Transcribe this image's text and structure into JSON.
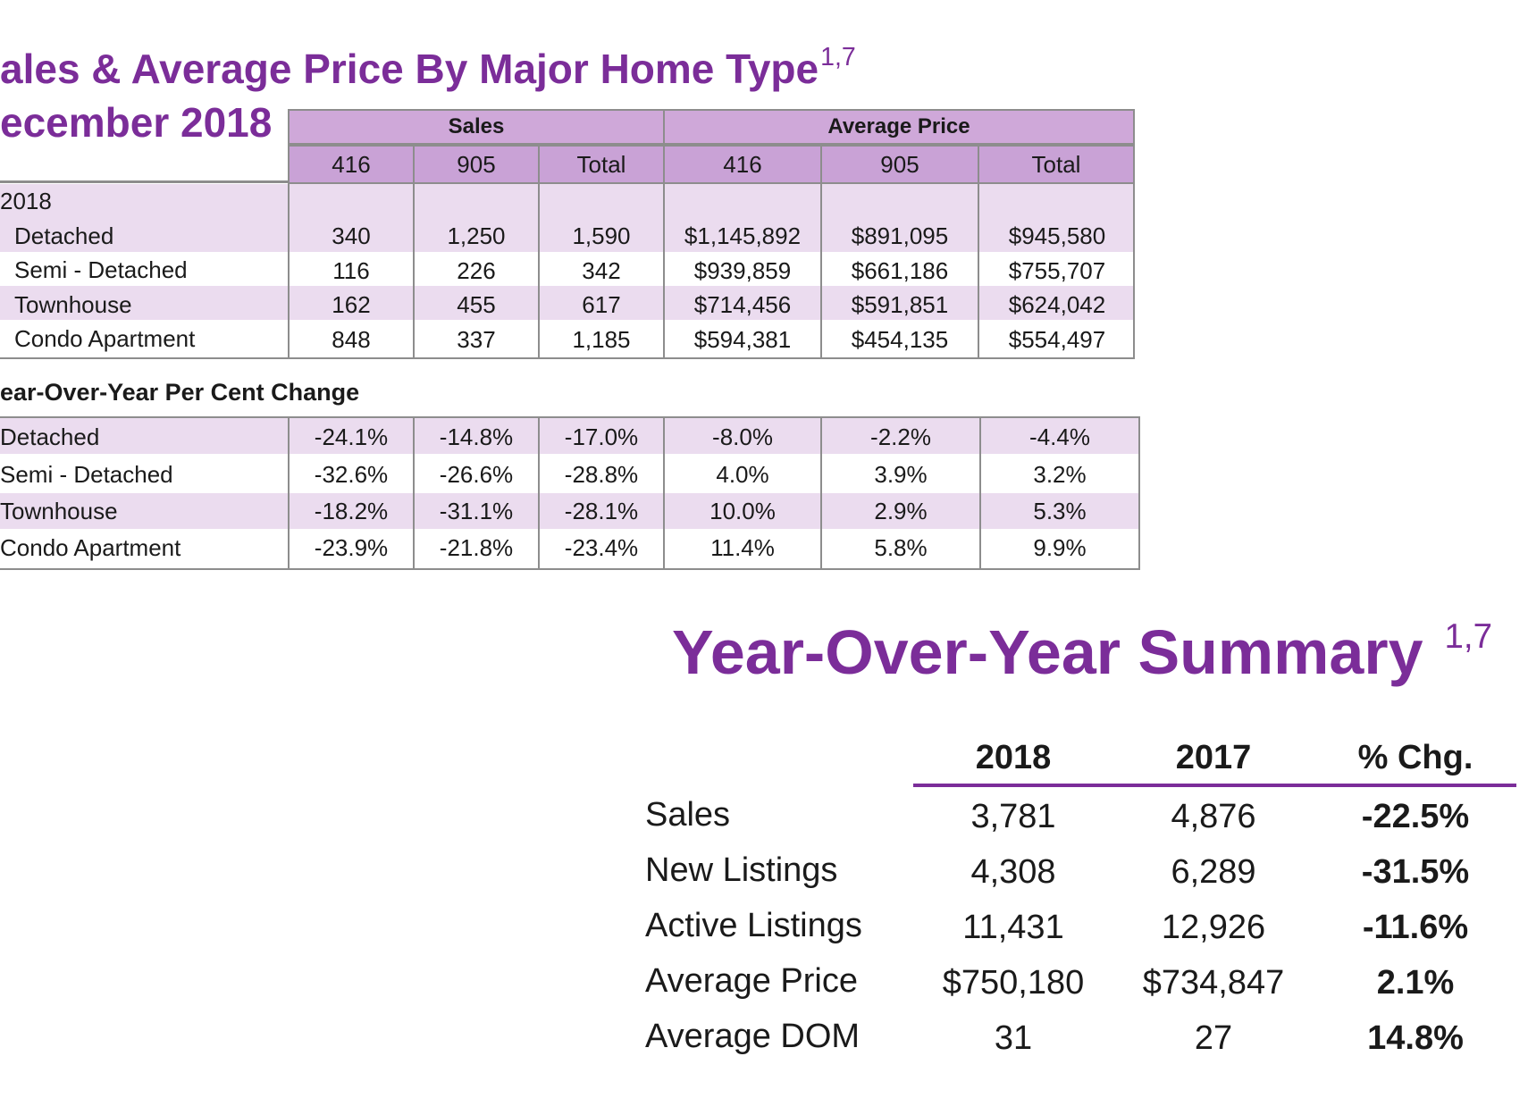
{
  "header": {
    "title": "ales & Average Price By Major Home Type",
    "title_sup": "1,7",
    "subtitle": "ecember 2018"
  },
  "table1": {
    "group_sales": "Sales",
    "group_avg_price": "Average Price",
    "columns": [
      "416",
      "905",
      "Total",
      "416",
      "905",
      "Total"
    ],
    "year_label": "2018",
    "rows": [
      {
        "label": "Detached",
        "values": [
          "340",
          "1,250",
          "1,590",
          "$1,145,892",
          "$891,095",
          "$945,580"
        ]
      },
      {
        "label": "Semi - Detached",
        "values": [
          "116",
          "226",
          "342",
          "$939,859",
          "$661,186",
          "$755,707"
        ]
      },
      {
        "label": "Townhouse",
        "values": [
          "162",
          "455",
          "617",
          "$714,456",
          "$591,851",
          "$624,042"
        ]
      },
      {
        "label": "Condo Apartment",
        "values": [
          "848",
          "337",
          "1,185",
          "$594,381",
          "$454,135",
          "$554,497"
        ]
      }
    ]
  },
  "table2": {
    "heading": "ear-Over-Year Per Cent Change",
    "rows": [
      {
        "label": "Detached",
        "values": [
          "-24.1%",
          "-14.8%",
          "-17.0%",
          "-8.0%",
          "-2.2%",
          "-4.4%"
        ]
      },
      {
        "label": "Semi - Detached",
        "values": [
          "-32.6%",
          "-26.6%",
          "-28.8%",
          "4.0%",
          "3.9%",
          "3.2%"
        ]
      },
      {
        "label": "Townhouse",
        "values": [
          "-18.2%",
          "-31.1%",
          "-28.1%",
          "10.0%",
          "2.9%",
          "5.3%"
        ]
      },
      {
        "label": "Condo Apartment",
        "values": [
          "-23.9%",
          "-21.8%",
          "-23.4%",
          "11.4%",
          "5.8%",
          "9.9%"
        ]
      }
    ]
  },
  "summary": {
    "title": "Year-Over-Year Summary",
    "title_sup": "1,7",
    "headers": [
      "2018",
      "2017",
      "% Chg."
    ],
    "rows": [
      {
        "label": "Sales",
        "y2018": "3,781",
        "y2017": "4,876",
        "chg": "-22.5%"
      },
      {
        "label": "New Listings",
        "y2018": "4,308",
        "y2017": "6,289",
        "chg": "-31.5%"
      },
      {
        "label": "Active Listings",
        "y2018": "11,431",
        "y2017": "12,926",
        "chg": "-11.6%"
      },
      {
        "label": "Average Price",
        "y2018": "$750,180",
        "y2017": "$734,847",
        "chg": "2.1%"
      },
      {
        "label": "Average DOM",
        "y2018": "31",
        "y2017": "27",
        "chg": "14.8%"
      }
    ]
  },
  "colors": {
    "accent": "#7b2d99",
    "header_fill": "#cfa8d9",
    "band_fill": "#ebdcef",
    "grid": "#8d8d8d"
  }
}
